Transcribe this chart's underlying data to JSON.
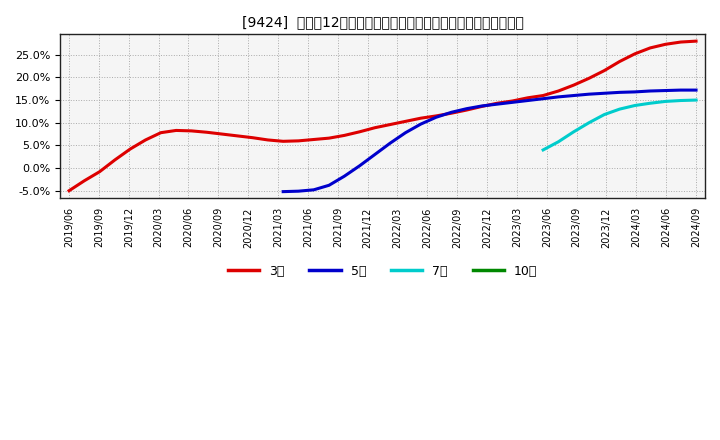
{
  "title": "[9424]  売上高12か月移動合計の対前年同期増減率の平均値の推移",
  "ylim": [
    -0.065,
    0.295
  ],
  "yticks": [
    -0.05,
    0.0,
    0.05,
    0.1,
    0.15,
    0.2,
    0.25
  ],
  "background_color": "#ffffff",
  "plot_bg_color": "#f5f5f5",
  "grid_color": "#aaaaaa",
  "series": {
    "3year": {
      "color": "#dd0000",
      "label": "3年",
      "points": [
        [
          0,
          -0.05
        ],
        [
          1,
          -0.028
        ],
        [
          2,
          -0.008
        ],
        [
          3,
          0.018
        ],
        [
          4,
          0.042
        ],
        [
          5,
          0.062
        ],
        [
          6,
          0.078
        ],
        [
          7,
          0.083
        ],
        [
          8,
          0.082
        ],
        [
          9,
          0.079
        ],
        [
          10,
          0.075
        ],
        [
          11,
          0.071
        ],
        [
          12,
          0.067
        ],
        [
          13,
          0.062
        ],
        [
          14,
          0.059
        ],
        [
          15,
          0.06
        ],
        [
          16,
          0.063
        ],
        [
          17,
          0.066
        ],
        [
          18,
          0.072
        ],
        [
          19,
          0.08
        ],
        [
          20,
          0.089
        ],
        [
          21,
          0.096
        ],
        [
          22,
          0.103
        ],
        [
          23,
          0.11
        ],
        [
          24,
          0.115
        ],
        [
          25,
          0.121
        ],
        [
          26,
          0.128
        ],
        [
          27,
          0.136
        ],
        [
          28,
          0.143
        ],
        [
          29,
          0.148
        ],
        [
          30,
          0.155
        ],
        [
          31,
          0.16
        ],
        [
          32,
          0.17
        ],
        [
          33,
          0.183
        ],
        [
          34,
          0.198
        ],
        [
          35,
          0.215
        ],
        [
          36,
          0.235
        ],
        [
          37,
          0.252
        ],
        [
          38,
          0.265
        ],
        [
          39,
          0.273
        ],
        [
          40,
          0.278
        ],
        [
          41,
          0.28
        ]
      ]
    },
    "5year": {
      "color": "#0000cc",
      "label": "5年",
      "points": [
        [
          14,
          -0.052
        ],
        [
          15,
          -0.051
        ],
        [
          16,
          -0.048
        ],
        [
          17,
          -0.038
        ],
        [
          18,
          -0.018
        ],
        [
          19,
          0.005
        ],
        [
          20,
          0.03
        ],
        [
          21,
          0.055
        ],
        [
          22,
          0.078
        ],
        [
          23,
          0.097
        ],
        [
          24,
          0.112
        ],
        [
          25,
          0.123
        ],
        [
          26,
          0.131
        ],
        [
          27,
          0.137
        ],
        [
          28,
          0.141
        ],
        [
          29,
          0.145
        ],
        [
          30,
          0.149
        ],
        [
          31,
          0.153
        ],
        [
          32,
          0.157
        ],
        [
          33,
          0.16
        ],
        [
          34,
          0.163
        ],
        [
          35,
          0.165
        ],
        [
          36,
          0.167
        ],
        [
          37,
          0.168
        ],
        [
          38,
          0.17
        ],
        [
          39,
          0.171
        ],
        [
          40,
          0.172
        ],
        [
          41,
          0.172
        ]
      ]
    },
    "7year": {
      "color": "#00cccc",
      "label": "7年",
      "points": [
        [
          31,
          0.04
        ],
        [
          32,
          0.058
        ],
        [
          33,
          0.08
        ],
        [
          34,
          0.1
        ],
        [
          35,
          0.118
        ],
        [
          36,
          0.13
        ],
        [
          37,
          0.138
        ],
        [
          38,
          0.143
        ],
        [
          39,
          0.147
        ],
        [
          40,
          0.149
        ],
        [
          41,
          0.15
        ]
      ]
    },
    "10year": {
      "color": "#008800",
      "label": "10年",
      "points": []
    }
  },
  "xtick_labels": [
    "2019/06",
    "2019/09",
    "2019/12",
    "2020/03",
    "2020/06",
    "2020/09",
    "2020/12",
    "2021/03",
    "2021/06",
    "2021/09",
    "2021/12",
    "2022/03",
    "2022/06",
    "2022/09",
    "2022/12",
    "2023/03",
    "2023/06",
    "2023/09",
    "2023/12",
    "2024/03",
    "2024/06",
    "2024/09"
  ],
  "n_total": 42,
  "n_labels": 22
}
